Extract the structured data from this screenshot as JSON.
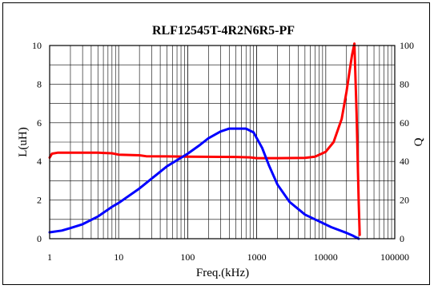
{
  "chart_data": {
    "type": "line",
    "title": "RLF12545T-4R2N6R5-PF",
    "xlabel": "Freq.(kHz)",
    "ylabel": "L(uH)",
    "y2label": "Q",
    "x_scale": "log",
    "xlim": [
      1,
      100000
    ],
    "ylim": [
      0,
      10
    ],
    "y2lim": [
      0,
      100
    ],
    "x_ticks": [
      "1",
      "10",
      "100",
      "1000",
      "10000",
      "100000"
    ],
    "y_ticks": [
      "0",
      "2",
      "4",
      "6",
      "8",
      "10"
    ],
    "y2_ticks": [
      "0",
      "20",
      "40",
      "60",
      "80",
      "100"
    ],
    "grid": true,
    "series": [
      {
        "color": "#ff0000",
        "axis": "left",
        "points": [
          [
            1,
            4.2
          ],
          [
            1.08,
            4.4
          ],
          [
            1.3,
            4.45
          ],
          [
            2,
            4.45
          ],
          [
            5,
            4.45
          ],
          [
            8,
            4.42
          ],
          [
            10,
            4.35
          ],
          [
            20,
            4.32
          ],
          [
            25,
            4.27
          ],
          [
            50,
            4.26
          ],
          [
            100,
            4.25
          ],
          [
            500,
            4.23
          ],
          [
            800,
            4.21
          ],
          [
            1000,
            4.17
          ],
          [
            2000,
            4.17
          ],
          [
            5000,
            4.18
          ],
          [
            7000,
            4.25
          ],
          [
            10000,
            4.5
          ],
          [
            13000,
            5.0
          ],
          [
            17000,
            6.2
          ],
          [
            20000,
            7.6
          ],
          [
            22000,
            8.6
          ],
          [
            24000,
            9.5
          ],
          [
            26000,
            10.1
          ],
          [
            28000,
            6.5
          ],
          [
            30000,
            2.0
          ],
          [
            31000,
            0.2
          ]
        ]
      },
      {
        "color": "#0000ff",
        "axis": "right",
        "points": [
          [
            1,
            3.3
          ],
          [
            1.5,
            4.2
          ],
          [
            2,
            5.5
          ],
          [
            3,
            7.5
          ],
          [
            5,
            11.5
          ],
          [
            8,
            16.5
          ],
          [
            10,
            18.5
          ],
          [
            20,
            26
          ],
          [
            50,
            37.5
          ],
          [
            100,
            44
          ],
          [
            150,
            48.5
          ],
          [
            200,
            52
          ],
          [
            300,
            55.5
          ],
          [
            400,
            57
          ],
          [
            500,
            57
          ],
          [
            700,
            57
          ],
          [
            900,
            55
          ],
          [
            1200,
            47
          ],
          [
            1500,
            38
          ],
          [
            2000,
            28
          ],
          [
            3000,
            19
          ],
          [
            5000,
            12.5
          ],
          [
            8000,
            9
          ],
          [
            12000,
            6
          ],
          [
            20000,
            3
          ],
          [
            25000,
            1.5
          ],
          [
            30000,
            0
          ]
        ]
      }
    ]
  }
}
